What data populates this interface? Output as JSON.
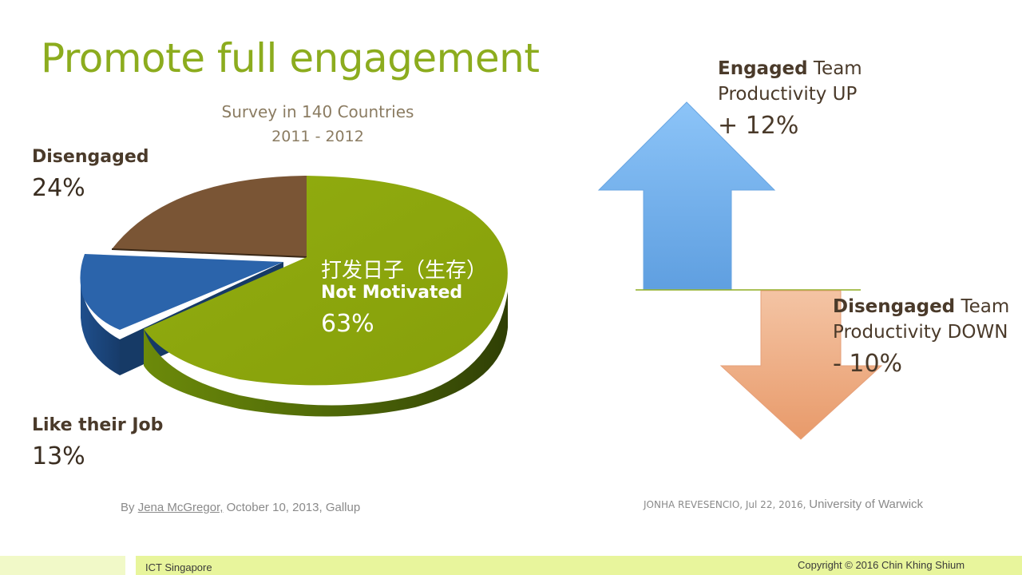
{
  "slide": {
    "title": "Promote full engagement",
    "footer_left": "ICT Singapore",
    "footer_right": "Copyright © 2016 Chin Khing Shium"
  },
  "chart_data": {
    "type": "pie",
    "title": "Survey in 140 Countries",
    "subtitle": "2011 - 2012",
    "categories": [
      "Not Motivated",
      "Disengaged",
      "Like their Job"
    ],
    "values": [
      63,
      24,
      13
    ],
    "labels": [
      "63%",
      "24%",
      "13%"
    ],
    "inside_label_cn": "打发日子（生存）",
    "colors": {
      "Not Motivated": "#8ca80c",
      "Disengaged": "#7a5535",
      "Like their Job": "#2b64ab"
    },
    "legend": "none"
  },
  "arrows": {
    "up": {
      "bold": "Engaged",
      "rest": " Team",
      "line2": "Productivity UP",
      "value": "+ 12%",
      "color": "#79b5f2"
    },
    "down": {
      "bold": "Disengaged",
      "rest": " Team",
      "line2": "Productivity DOWN",
      "value": "- 10%",
      "color": "#eeac82"
    }
  },
  "sources": {
    "left_prefix": "By ",
    "left_author": "Jena McGregor,",
    "left_rest": " October 10, 2013, Gallup",
    "right_prefix": "JONHA REVESENCIO, Jul 22, 2016, ",
    "right_rest": "University  of Warwick"
  }
}
